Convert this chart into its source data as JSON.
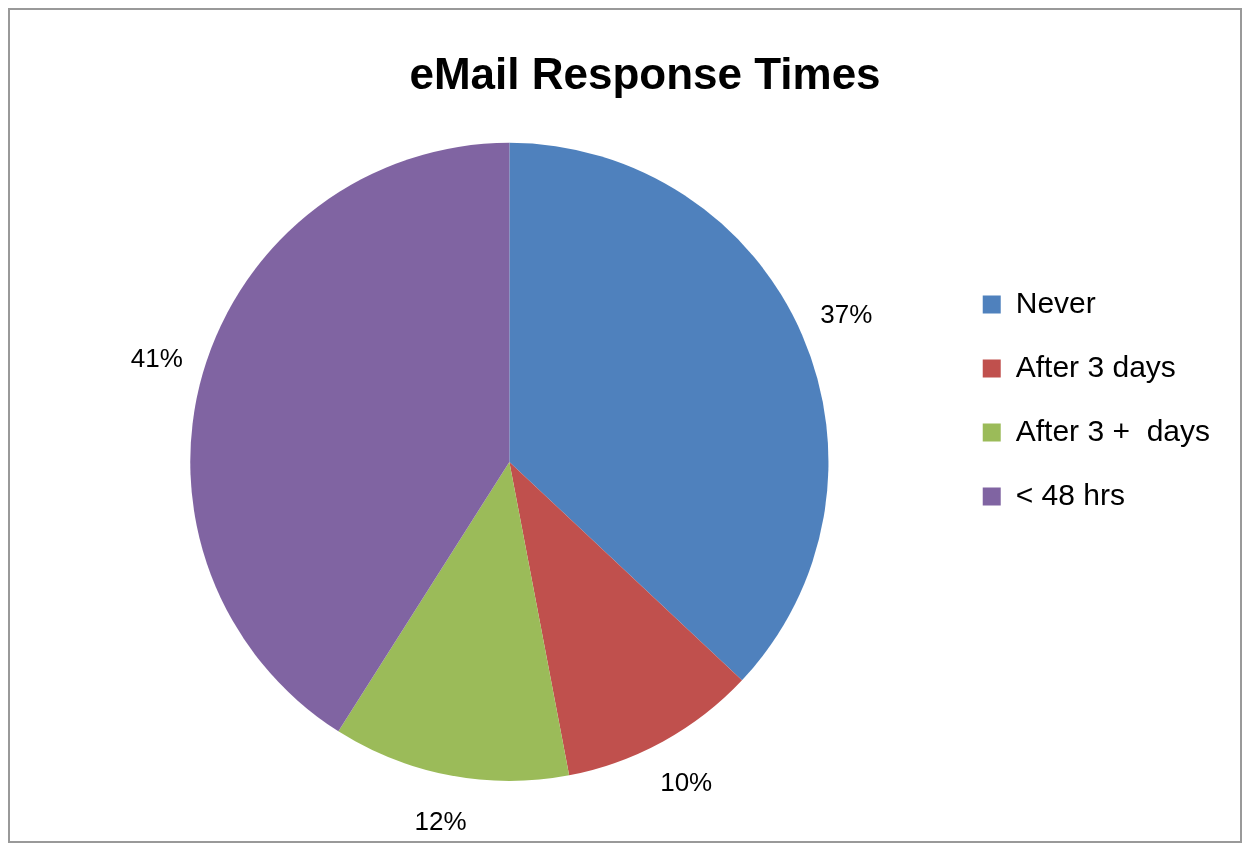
{
  "chart_data": {
    "type": "pie",
    "title": "eMail Response Times",
    "categories": [
      "Never",
      "After 3 days",
      "After 3 +  days",
      "< 48 hrs"
    ],
    "values": [
      37,
      10,
      12,
      41
    ],
    "colors": [
      "#4f81bd",
      "#c0504d",
      "#9bbb59",
      "#8064a2"
    ],
    "value_labels": [
      "37%",
      "10%",
      "12%",
      "41%"
    ],
    "legend": "right"
  }
}
